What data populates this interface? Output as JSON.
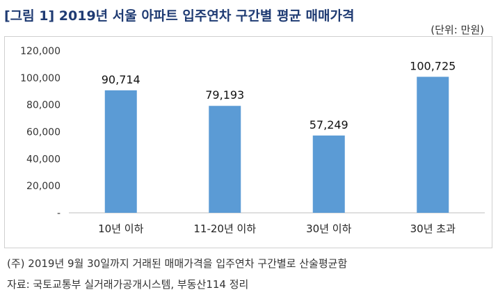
{
  "title": "[그림 1] 2019년 서울 아파트 입주연차 구간별 평균 매매가격",
  "unit": "(단위: 만원)",
  "notes": {
    "basis": "(주) 2019년 9월 30일까지 거래된 매매가격을 입주연차 구간별로 산술평균함",
    "source": "자료: 국토교통부 실거래가공개시스템, 부동산114 정리"
  },
  "colors": {
    "bar": "#5b9bd5",
    "title": "#1f3b73",
    "axis": "#bfbfbf"
  },
  "chart_data": {
    "type": "bar",
    "title": "[그림 1] 2019년 서울 아파트 입주연차 구간별 평균 매매가격",
    "xlabel": "",
    "ylabel": "",
    "categories": [
      "10년 이하",
      "11-20년 이하",
      "30년 이하",
      "30년 초과"
    ],
    "values": [
      90714,
      79193,
      57249,
      100725
    ],
    "value_labels": [
      "90,714",
      "79,193",
      "57,249",
      "100,725"
    ],
    "ylim": [
      0,
      120000
    ],
    "y_ticks": [
      0,
      20000,
      40000,
      60000,
      80000,
      100000,
      120000
    ],
    "y_tick_labels": [
      "-",
      "20,000",
      "40,000",
      "60,000",
      "80,000",
      "100,000",
      "120,000"
    ],
    "grid": false,
    "legend": "none"
  }
}
